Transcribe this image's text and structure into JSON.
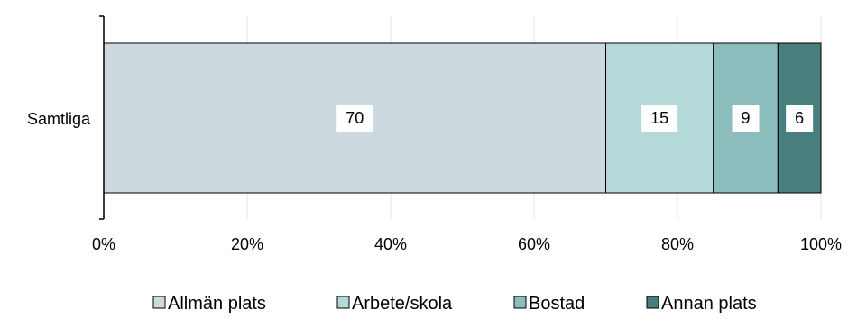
{
  "chart_data": {
    "type": "bar",
    "orientation": "horizontal",
    "stacked": true,
    "percent": true,
    "categories": [
      "Samtliga"
    ],
    "series": [
      {
        "name": "Allmän plats",
        "values": [
          70
        ],
        "color": "#ccd9de"
      },
      {
        "name": "Arbete/skola",
        "values": [
          15
        ],
        "color": "#b3d9d8"
      },
      {
        "name": "Bostad",
        "values": [
          9
        ],
        "color": "#8bbdbc"
      },
      {
        "name": "Annan plats",
        "values": [
          6
        ],
        "color": "#487e7d"
      }
    ],
    "data_labels": [
      "70",
      "15",
      "9",
      "6"
    ],
    "xlim": [
      0,
      100
    ],
    "xticks": [
      0,
      20,
      40,
      60,
      80,
      100
    ],
    "xtick_labels": [
      "0%",
      "20%",
      "40%",
      "60%",
      "80%",
      "100%"
    ],
    "grid": true,
    "legend_position": "bottom",
    "title": "",
    "xlabel": "",
    "ylabel": ""
  }
}
